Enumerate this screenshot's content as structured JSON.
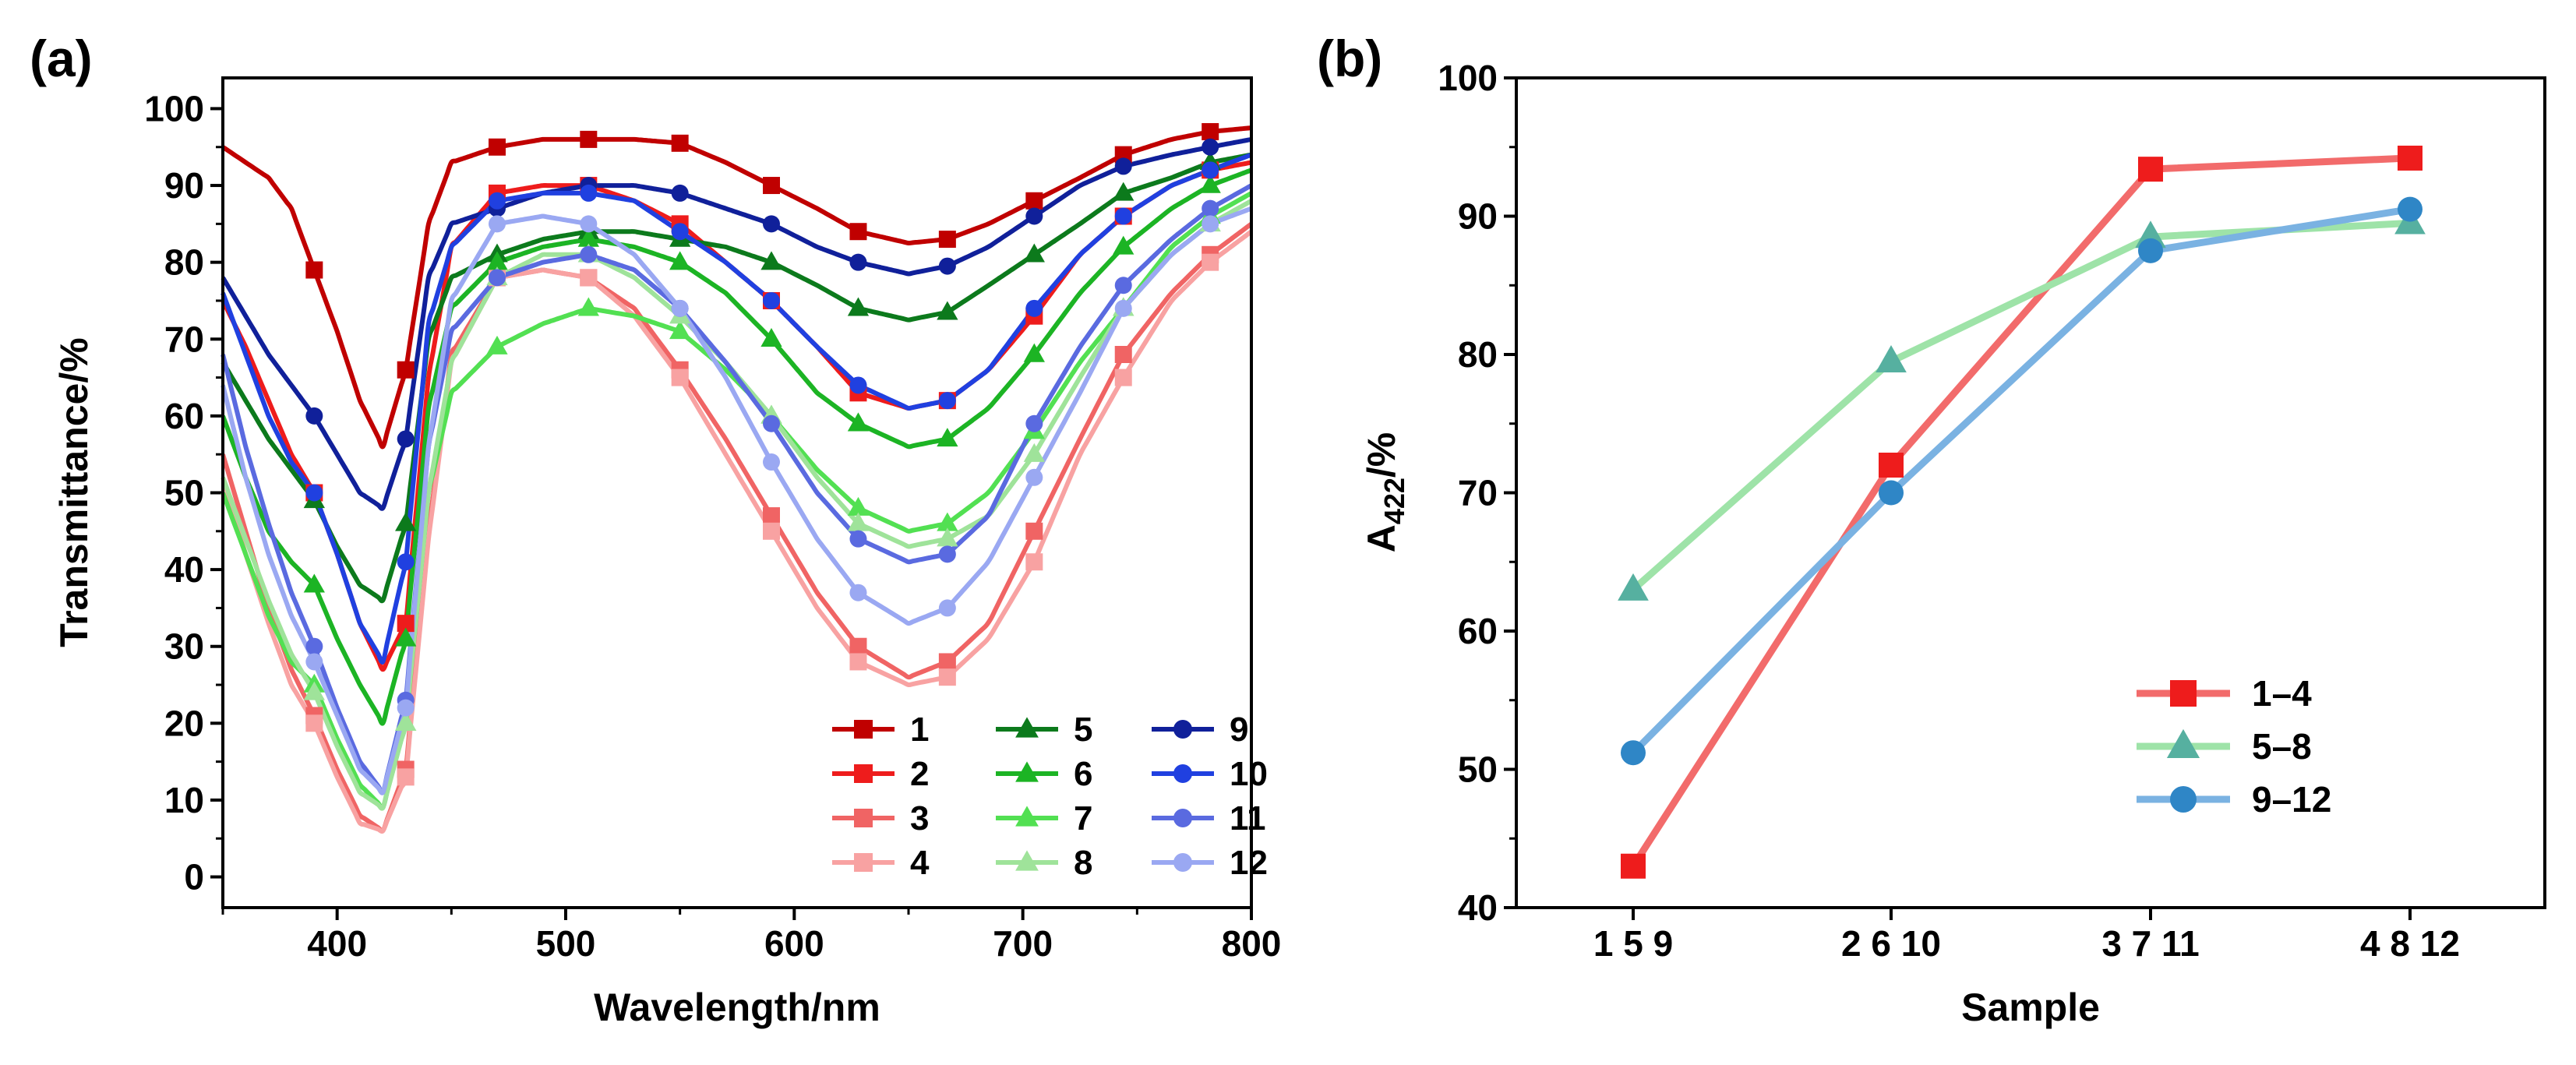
{
  "chart_data": [
    {
      "panel": "(a)",
      "type": "line",
      "xlabel": "Wavelength/nm",
      "ylabel": "Transmittance/%",
      "xlim": [
        350,
        800
      ],
      "ylim": [
        -4,
        104
      ],
      "xticks": [
        400,
        500,
        600,
        700,
        800
      ],
      "yticks": [
        0,
        10,
        20,
        30,
        40,
        50,
        60,
        70,
        80,
        90,
        100
      ],
      "marker_x": [
        390,
        430,
        470,
        510,
        550,
        590,
        628,
        667,
        705,
        744,
        782
      ],
      "series": [
        {
          "name": "1",
          "color": "#c00000",
          "marker": "square",
          "x": [
            350,
            360,
            370,
            380,
            390,
            400,
            410,
            420,
            430,
            440,
            450,
            470,
            490,
            510,
            530,
            550,
            570,
            590,
            610,
            628,
            650,
            667,
            685,
            705,
            725,
            744,
            765,
            782,
            800
          ],
          "y": [
            95,
            93,
            91,
            87,
            79,
            71,
            62,
            56,
            66,
            85,
            93,
            95,
            96,
            96,
            96,
            95.5,
            93,
            90,
            87,
            84,
            82.5,
            83,
            85,
            88,
            91,
            94,
            96,
            97,
            97.5
          ]
        },
        {
          "name": "2",
          "color": "#ee1c1c",
          "marker": "square",
          "x": [
            350,
            360,
            370,
            380,
            390,
            400,
            410,
            420,
            430,
            440,
            450,
            470,
            490,
            510,
            530,
            550,
            570,
            590,
            610,
            628,
            650,
            667,
            685,
            705,
            725,
            744,
            765,
            782,
            800
          ],
          "y": [
            75,
            69,
            62,
            55,
            50,
            42,
            33,
            27,
            33,
            65,
            82,
            89,
            90,
            90,
            88,
            85,
            80,
            75,
            69,
            63,
            61,
            62,
            66,
            73,
            81,
            86,
            90,
            92,
            93
          ]
        },
        {
          "name": "3",
          "color": "#f06464",
          "marker": "square",
          "x": [
            350,
            360,
            370,
            380,
            390,
            400,
            410,
            420,
            430,
            440,
            450,
            470,
            490,
            510,
            530,
            550,
            570,
            590,
            610,
            628,
            650,
            667,
            685,
            705,
            725,
            744,
            765,
            782,
            800
          ],
          "y": [
            55,
            45,
            35,
            27,
            21,
            14,
            8,
            6,
            14,
            45,
            68,
            78,
            79,
            78,
            74,
            66,
            57,
            47,
            37,
            30,
            26,
            28,
            33,
            45,
            57,
            68,
            76,
            81,
            85
          ]
        },
        {
          "name": "4",
          "color": "#f8a2a2",
          "marker": "square",
          "x": [
            350,
            360,
            370,
            380,
            390,
            400,
            410,
            420,
            430,
            440,
            450,
            470,
            490,
            510,
            530,
            550,
            570,
            590,
            610,
            628,
            650,
            667,
            685,
            705,
            725,
            744,
            765,
            782,
            800
          ],
          "y": [
            52,
            42,
            33,
            25,
            20,
            13,
            7,
            6,
            13,
            44,
            67,
            78,
            79,
            78,
            73,
            65,
            55,
            45,
            35,
            28,
            25,
            26,
            31,
            41,
            55,
            65,
            75,
            80,
            84
          ]
        },
        {
          "name": "5",
          "color": "#0c7a1c",
          "marker": "triangle",
          "x": [
            350,
            360,
            370,
            380,
            390,
            400,
            410,
            420,
            430,
            440,
            450,
            470,
            490,
            510,
            530,
            550,
            570,
            590,
            610,
            628,
            650,
            667,
            685,
            705,
            725,
            744,
            765,
            782,
            800
          ],
          "y": [
            67,
            62,
            57,
            53,
            49,
            43,
            38,
            36,
            46,
            70,
            78,
            81,
            83,
            84,
            84,
            83,
            82,
            80,
            77,
            74,
            72.5,
            73.5,
            77,
            81,
            85,
            89,
            91,
            93,
            94
          ]
        },
        {
          "name": "6",
          "color": "#1cb424",
          "marker": "triangle",
          "x": [
            350,
            360,
            370,
            380,
            390,
            400,
            410,
            420,
            430,
            440,
            450,
            470,
            490,
            510,
            530,
            550,
            570,
            590,
            610,
            628,
            650,
            667,
            685,
            705,
            725,
            744,
            765,
            782,
            800
          ],
          "y": [
            60,
            52,
            45,
            41,
            38,
            31,
            25,
            20,
            31,
            61,
            74,
            80,
            82,
            83,
            82,
            80,
            76,
            70,
            63,
            59,
            56,
            57,
            61,
            68,
            76,
            82,
            87,
            90,
            92
          ]
        },
        {
          "name": "7",
          "color": "#52e052",
          "marker": "triangle",
          "x": [
            350,
            360,
            370,
            380,
            390,
            400,
            410,
            420,
            430,
            440,
            450,
            470,
            490,
            510,
            530,
            550,
            570,
            590,
            610,
            628,
            650,
            667,
            685,
            705,
            725,
            744,
            765,
            782,
            800
          ],
          "y": [
            50,
            42,
            34,
            28,
            25,
            18,
            12,
            9,
            20,
            50,
            63,
            69,
            72,
            74,
            73,
            71,
            66,
            60,
            53,
            48,
            45,
            46,
            50,
            58,
            67,
            74,
            82,
            86,
            89
          ]
        },
        {
          "name": "8",
          "color": "#9fe39a",
          "marker": "triangle",
          "x": [
            350,
            360,
            370,
            380,
            390,
            400,
            410,
            420,
            430,
            440,
            450,
            470,
            490,
            510,
            530,
            550,
            570,
            590,
            610,
            628,
            650,
            667,
            685,
            705,
            725,
            744,
            765,
            782,
            800
          ],
          "y": [
            52,
            44,
            36,
            29,
            24,
            17,
            11,
            9,
            20,
            50,
            67,
            78,
            81,
            81,
            78,
            73,
            67,
            60,
            52,
            46,
            43,
            44,
            47,
            55,
            65,
            74,
            81,
            85,
            88
          ]
        },
        {
          "name": "9",
          "color": "#10209a",
          "marker": "circle",
          "x": [
            350,
            360,
            370,
            380,
            390,
            400,
            410,
            420,
            430,
            440,
            450,
            470,
            490,
            510,
            530,
            550,
            570,
            590,
            610,
            628,
            650,
            667,
            685,
            705,
            725,
            744,
            765,
            782,
            800
          ],
          "y": [
            78,
            73,
            68,
            64,
            60,
            55,
            50,
            48,
            57,
            78,
            85,
            87,
            89,
            90,
            90,
            89,
            87,
            85,
            82,
            80,
            78.5,
            79.5,
            82,
            86,
            90,
            92.5,
            94,
            95,
            96
          ]
        },
        {
          "name": "10",
          "color": "#2040e0",
          "marker": "circle",
          "x": [
            350,
            360,
            370,
            380,
            390,
            400,
            410,
            420,
            430,
            440,
            450,
            470,
            490,
            510,
            530,
            550,
            570,
            590,
            610,
            628,
            650,
            667,
            685,
            705,
            725,
            744,
            765,
            782,
            800
          ],
          "y": [
            76,
            68,
            60,
            54,
            50,
            42,
            33,
            28,
            41,
            72,
            82,
            88,
            89,
            89,
            88,
            84,
            80,
            75,
            69,
            64,
            61,
            62,
            66,
            74,
            81,
            86,
            90,
            92,
            94
          ]
        },
        {
          "name": "11",
          "color": "#5a6ae0",
          "marker": "circle",
          "x": [
            350,
            360,
            370,
            380,
            390,
            400,
            410,
            420,
            430,
            440,
            450,
            470,
            490,
            510,
            530,
            550,
            570,
            590,
            610,
            628,
            650,
            667,
            685,
            705,
            725,
            744,
            765,
            782,
            800
          ],
          "y": [
            68,
            56,
            46,
            37,
            30,
            22,
            15,
            11,
            23,
            56,
            71,
            78,
            80,
            81,
            79,
            74,
            67,
            59,
            50,
            44,
            41,
            42,
            47,
            59,
            69,
            77,
            83,
            87,
            90
          ]
        },
        {
          "name": "12",
          "color": "#9aa8f2",
          "marker": "circle",
          "x": [
            350,
            360,
            370,
            380,
            390,
            400,
            410,
            420,
            430,
            440,
            450,
            470,
            490,
            510,
            530,
            550,
            570,
            590,
            610,
            628,
            650,
            667,
            685,
            705,
            725,
            744,
            765,
            782,
            800
          ],
          "y": [
            64,
            52,
            42,
            34,
            28,
            21,
            14,
            11,
            22,
            56,
            75,
            85,
            86,
            85,
            81,
            74,
            65,
            54,
            44,
            37,
            33,
            35,
            41,
            52,
            63,
            74,
            81,
            85,
            87
          ]
        }
      ],
      "legend": "bottom-right"
    },
    {
      "panel": "(b)",
      "type": "line",
      "xlabel": "Sample",
      "ylabel_main": "A",
      "ylabel_sub": "422",
      "ylabel_suffix": "/%",
      "ylim": [
        40,
        100
      ],
      "yticks": [
        40,
        50,
        60,
        70,
        80,
        90,
        100
      ],
      "categories": [
        "1 5 9",
        "2 6 10",
        "3 7 11",
        "4 8 12"
      ],
      "series": [
        {
          "name": "1–4",
          "color": "#f26b6b",
          "marker_color": "#ee1c1c",
          "marker": "square",
          "values": [
            43,
            72,
            93.4,
            94.2
          ]
        },
        {
          "name": "5–8",
          "color": "#9ee3a8",
          "marker_color": "#56b0a0",
          "marker": "triangle",
          "values": [
            63,
            79.5,
            88.5,
            89.5
          ]
        },
        {
          "name": "9–12",
          "color": "#7ab2e2",
          "marker_color": "#2f86c6",
          "marker": "circle",
          "values": [
            51.2,
            70,
            87.5,
            90.5
          ]
        }
      ],
      "legend": "bottom-right"
    }
  ]
}
